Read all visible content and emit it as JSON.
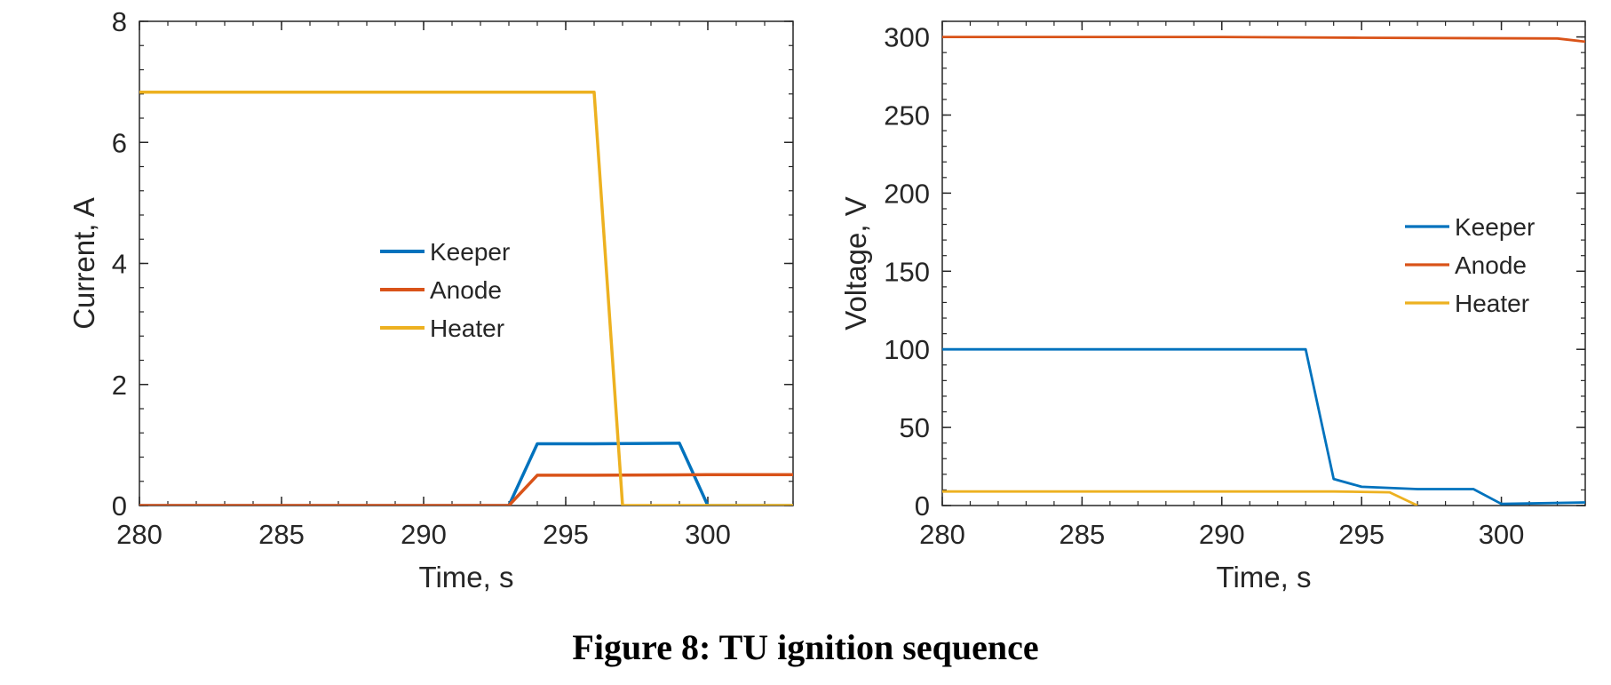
{
  "caption": "Figure 8: TU ignition sequence",
  "chart_data": [
    {
      "type": "line",
      "xlabel": "Time, s",
      "ylabel": "Current, A",
      "xlim": [
        280,
        303
      ],
      "ylim": [
        0,
        8
      ],
      "xticks": [
        280,
        285,
        290,
        295,
        300
      ],
      "yticks": [
        0,
        2,
        4,
        6,
        8
      ],
      "grid": false,
      "legend": "center",
      "series": [
        {
          "name": "Keeper",
          "color": "#0072BD",
          "x": [
            280,
            293,
            294,
            296,
            299,
            300,
            303
          ],
          "y": [
            0,
            0,
            1.02,
            1.02,
            1.03,
            0,
            0
          ]
        },
        {
          "name": "Anode",
          "color": "#D95319",
          "x": [
            280,
            293,
            294,
            296,
            300,
            303
          ],
          "y": [
            0,
            0,
            0.5,
            0.5,
            0.51,
            0.51
          ]
        },
        {
          "name": "Heater",
          "color": "#EDB120",
          "x": [
            280,
            296,
            297,
            303
          ],
          "y": [
            6.83,
            6.83,
            0,
            0
          ]
        }
      ]
    },
    {
      "type": "line",
      "xlabel": "Time, s",
      "ylabel": "Voltage, V",
      "xlim": [
        280,
        303
      ],
      "ylim": [
        0,
        310
      ],
      "xticks": [
        280,
        285,
        290,
        295,
        300
      ],
      "yticks": [
        0,
        50,
        100,
        150,
        200,
        250,
        300
      ],
      "grid": false,
      "legend": "right",
      "series": [
        {
          "name": "Keeper",
          "color": "#0072BD",
          "x": [
            280,
            293,
            294,
            295,
            297,
            299,
            300,
            303
          ],
          "y": [
            100,
            100,
            17,
            12,
            10.5,
            10.5,
            1,
            2
          ]
        },
        {
          "name": "Anode",
          "color": "#D95319",
          "x": [
            280,
            290,
            295,
            302,
            303
          ],
          "y": [
            300,
            300,
            299.5,
            299,
            297
          ]
        },
        {
          "name": "Heater",
          "color": "#EDB120",
          "x": [
            280,
            294,
            296,
            297
          ],
          "y": [
            9,
            9,
            8.5,
            0
          ]
        }
      ]
    }
  ]
}
